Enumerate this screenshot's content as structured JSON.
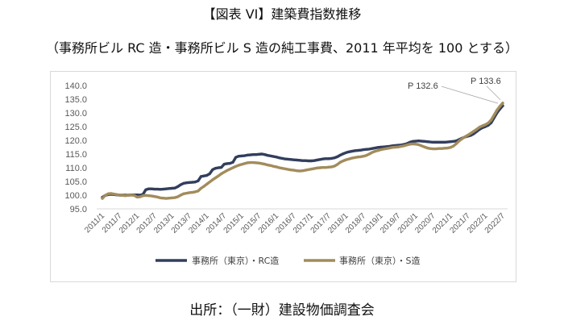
{
  "chart_data": {
    "type": "line",
    "title": "【図表 VI】建築費指数推移",
    "subtitle": "（事務所ビル RC 造・事務所ビル S 造の純工事費、2011 年平均を 100 とする）",
    "source": "出所：（一財）建設物価調査会",
    "ylim": [
      95,
      140
    ],
    "yticks": [
      "140.0",
      "135.0",
      "130.0",
      "125.0",
      "120.0",
      "115.0",
      "110.0",
      "105.0",
      "100.0",
      "95.0"
    ],
    "xticks": [
      "2011/1",
      "2011/7",
      "2012/1",
      "2012/7",
      "2013/1",
      "2013/7",
      "2014/1",
      "2014/7",
      "2015/1",
      "2015/7",
      "2016/1",
      "2016/7",
      "2017/1",
      "2017/7",
      "2018/1",
      "2018/7",
      "2019/1",
      "2019/7",
      "2020/1",
      "2020/7",
      "2021/1",
      "2021/7",
      "2022/1",
      "2022/7"
    ],
    "grid": false,
    "legend_position": "bottom",
    "x": [
      "2011/1",
      "2011/2",
      "2011/3",
      "2011/4",
      "2011/5",
      "2011/6",
      "2011/7",
      "2011/8",
      "2011/9",
      "2011/10",
      "2011/11",
      "2011/12",
      "2012/1",
      "2012/2",
      "2012/3",
      "2012/4",
      "2012/5",
      "2012/6",
      "2012/7",
      "2012/8",
      "2012/9",
      "2012/10",
      "2012/11",
      "2012/12",
      "2013/1",
      "2013/2",
      "2013/3",
      "2013/4",
      "2013/5",
      "2013/6",
      "2013/7",
      "2013/8",
      "2013/9",
      "2013/10",
      "2013/11",
      "2013/12",
      "2014/1",
      "2014/2",
      "2014/3",
      "2014/4",
      "2014/5",
      "2014/6",
      "2014/7",
      "2014/8",
      "2014/9",
      "2014/10",
      "2014/11",
      "2014/12",
      "2015/1",
      "2015/2",
      "2015/3",
      "2015/4",
      "2015/5",
      "2015/6",
      "2015/7",
      "2015/8",
      "2015/9",
      "2015/10",
      "2015/11",
      "2015/12",
      "2016/1",
      "2016/2",
      "2016/3",
      "2016/4",
      "2016/5",
      "2016/6",
      "2016/7",
      "2016/8",
      "2016/9",
      "2016/10",
      "2016/11",
      "2016/12",
      "2017/1",
      "2017/2",
      "2017/3",
      "2017/4",
      "2017/5",
      "2017/6",
      "2017/7",
      "2017/8",
      "2017/9",
      "2017/10",
      "2017/11",
      "2017/12",
      "2018/1",
      "2018/2",
      "2018/3",
      "2018/4",
      "2018/5",
      "2018/6",
      "2018/7",
      "2018/8",
      "2018/9",
      "2018/10",
      "2018/11",
      "2018/12",
      "2019/1",
      "2019/2",
      "2019/3",
      "2019/4",
      "2019/5",
      "2019/6",
      "2019/7",
      "2019/8",
      "2019/9",
      "2019/10",
      "2019/11",
      "2019/12",
      "2020/1",
      "2020/2",
      "2020/3",
      "2020/4",
      "2020/5",
      "2020/6",
      "2020/7",
      "2020/8",
      "2020/9",
      "2020/10",
      "2020/11",
      "2020/12",
      "2021/1",
      "2021/2",
      "2021/3",
      "2021/4",
      "2021/5",
      "2021/6",
      "2021/7",
      "2021/8",
      "2021/9",
      "2021/10",
      "2021/11",
      "2021/12",
      "2022/1",
      "2022/2",
      "2022/3",
      "2022/4",
      "2022/5",
      "2022/6",
      "2022/7"
    ],
    "series": [
      {
        "name": "事務所（東京）・RC造",
        "color": "#323E5D",
        "values": [
          99.2,
          99.9,
          100.2,
          100.3,
          100.2,
          100.1,
          100.0,
          100.0,
          100.0,
          100.0,
          100.1,
          100.1,
          100.1,
          100.0,
          100.3,
          102.0,
          102.3,
          102.3,
          102.2,
          102.2,
          102.1,
          102.2,
          102.3,
          102.4,
          102.5,
          102.6,
          103.1,
          103.8,
          104.3,
          104.5,
          104.6,
          104.7,
          104.8,
          105.2,
          106.8,
          107.0,
          107.2,
          107.8,
          109.3,
          109.8,
          110.0,
          110.1,
          111.3,
          111.5,
          111.6,
          112.0,
          113.8,
          114.2,
          114.3,
          114.4,
          114.6,
          114.7,
          114.8,
          114.8,
          114.9,
          115.0,
          114.8,
          114.5,
          114.3,
          114.1,
          113.9,
          113.6,
          113.4,
          113.2,
          113.1,
          113.0,
          112.9,
          112.8,
          112.7,
          112.6,
          112.6,
          112.5,
          112.5,
          112.6,
          112.8,
          113.0,
          113.2,
          113.3,
          113.3,
          113.4,
          113.6,
          114.0,
          114.6,
          115.1,
          115.5,
          115.8,
          116.0,
          116.2,
          116.3,
          116.4,
          116.6,
          116.7,
          116.8,
          117.0,
          117.2,
          117.4,
          117.5,
          117.6,
          117.7,
          117.8,
          118.0,
          118.1,
          118.2,
          118.3,
          118.5,
          118.8,
          119.3,
          119.6,
          119.7,
          119.8,
          119.7,
          119.6,
          119.5,
          119.4,
          119.3,
          119.3,
          119.3,
          119.3,
          119.3,
          119.4,
          119.5,
          119.6,
          119.8,
          120.3,
          120.8,
          121.2,
          121.5,
          121.8,
          122.4,
          123.2,
          124.0,
          124.6,
          125.0,
          125.5,
          126.4,
          128.2,
          130.0,
          131.4,
          132.6
        ]
      },
      {
        "name": "事務所（東京）・S造",
        "color": "#A28C5C",
        "values": [
          98.8,
          99.9,
          100.5,
          100.6,
          100.4,
          100.2,
          100.0,
          99.9,
          99.8,
          100.0,
          100.0,
          99.9,
          99.3,
          99.4,
          99.8,
          99.9,
          99.8,
          99.7,
          99.5,
          99.3,
          99.0,
          98.9,
          98.8,
          98.9,
          99.0,
          99.1,
          99.4,
          100.0,
          100.5,
          100.7,
          100.9,
          101.0,
          101.2,
          101.5,
          102.5,
          103.2,
          104.0,
          104.8,
          105.6,
          106.3,
          107.0,
          107.8,
          108.4,
          109.0,
          109.5,
          110.0,
          110.5,
          110.9,
          111.2,
          111.5,
          111.8,
          111.9,
          111.9,
          111.8,
          111.7,
          111.5,
          111.3,
          111.0,
          110.8,
          110.5,
          110.3,
          110.0,
          109.8,
          109.6,
          109.4,
          109.2,
          109.1,
          108.9,
          108.8,
          108.9,
          109.1,
          109.3,
          109.5,
          109.7,
          109.9,
          110.0,
          110.1,
          110.1,
          110.2,
          110.3,
          110.6,
          111.2,
          112.0,
          112.5,
          112.9,
          113.2,
          113.5,
          113.7,
          113.9,
          114.0,
          114.2,
          114.5,
          115.0,
          115.6,
          116.0,
          116.3,
          116.6,
          116.8,
          117.0,
          117.2,
          117.4,
          117.5,
          117.6,
          117.8,
          118.0,
          118.3,
          118.6,
          118.7,
          118.6,
          118.4,
          118.0,
          117.6,
          117.2,
          117.0,
          116.9,
          116.9,
          117.0,
          117.0,
          117.1,
          117.2,
          117.4,
          117.9,
          118.8,
          119.8,
          120.6,
          121.3,
          121.9,
          122.6,
          123.3,
          124.0,
          124.8,
          125.3,
          125.7,
          126.3,
          127.4,
          129.2,
          131.0,
          132.4,
          133.6
        ]
      }
    ],
    "annotations": [
      {
        "text": "P 132.6",
        "x": "2022/7",
        "y": 132.6
      },
      {
        "text": "P 133.6",
        "x": "2022/7",
        "y": 133.6
      }
    ]
  }
}
